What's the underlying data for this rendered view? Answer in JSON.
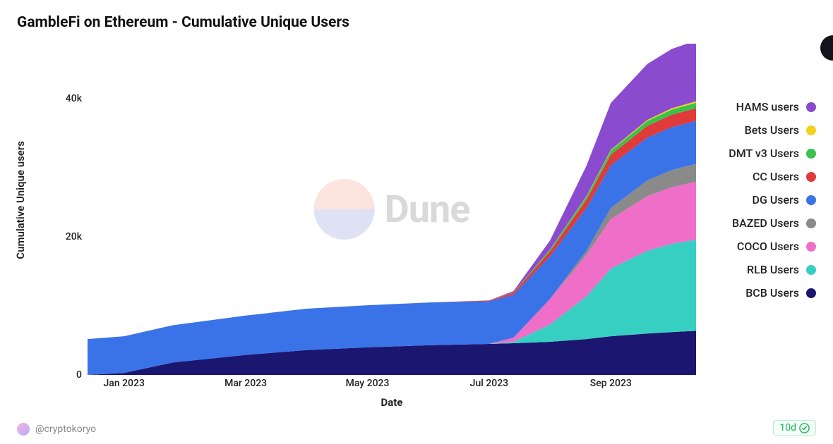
{
  "title": "GambleFi on Ethereum - Cumulative Unique Users",
  "y_axis_label": "Cumulative Unique users",
  "x_axis_label": "Date",
  "author_handle": "@cryptokoryo",
  "freshness": "10d",
  "watermark_text": "Dune",
  "chart": {
    "type": "stacked-area",
    "background_color": "#ffffff",
    "title_fontsize": 21,
    "label_fontsize": 15,
    "tick_fontsize": 14,
    "ylim": [
      0,
      48000
    ],
    "y_ticks": [
      {
        "value": 0,
        "label": "0"
      },
      {
        "value": 20000,
        "label": "20k"
      },
      {
        "value": 40000,
        "label": "40k"
      }
    ],
    "x_domain": [
      0,
      10
    ],
    "x_ticks": [
      {
        "pos": 0.6,
        "label": "Jan 2023"
      },
      {
        "pos": 2.6,
        "label": "Mar 2023"
      },
      {
        "pos": 4.6,
        "label": "May 2023"
      },
      {
        "pos": 6.6,
        "label": "Jul 2023"
      },
      {
        "pos": 8.6,
        "label": "Sep 2023"
      }
    ],
    "x_samples": [
      0,
      0.6,
      1.4,
      2.6,
      3.6,
      4.6,
      5.6,
      6.6,
      7.0,
      7.6,
      8.2,
      8.6,
      9.2,
      9.6,
      10
    ],
    "series": [
      {
        "key": "BCB",
        "label": "BCB Users",
        "color": "#1b1670",
        "values": [
          0,
          300,
          1800,
          2900,
          3600,
          4000,
          4300,
          4500,
          4600,
          4800,
          5200,
          5600,
          6000,
          6200,
          6400
        ]
      },
      {
        "key": "RLB",
        "label": "RLB Users",
        "color": "#38cfc3",
        "values": [
          0,
          0,
          0,
          0,
          0,
          0,
          0,
          0,
          200,
          2500,
          6200,
          9800,
          12000,
          12800,
          13200
        ]
      },
      {
        "key": "COCO",
        "label": "COCO Users",
        "color": "#ef6fc8",
        "values": [
          0,
          0,
          0,
          0,
          0,
          0,
          0,
          0,
          600,
          3700,
          6000,
          7200,
          7900,
          8200,
          8400
        ]
      },
      {
        "key": "BAZED",
        "label": "BAZED Users",
        "color": "#8a8a8a",
        "values": [
          0,
          0,
          0,
          0,
          0,
          0,
          0,
          0,
          0,
          0,
          600,
          1600,
          2300,
          2500,
          2600
        ]
      },
      {
        "key": "DG",
        "label": "DG Users",
        "color": "#3a73e8",
        "values": [
          5200,
          5300,
          5400,
          5700,
          6000,
          6100,
          6200,
          6200,
          6200,
          6200,
          6200,
          6200,
          6200,
          6200,
          6200
        ]
      },
      {
        "key": "CC",
        "label": "CC Users",
        "color": "#e03a3a",
        "values": [
          0,
          0,
          0,
          0,
          0,
          0,
          0,
          100,
          300,
          700,
          1200,
          1500,
          1700,
          1800,
          1850
        ]
      },
      {
        "key": "DMTv3",
        "label": "DMT v3 Users",
        "color": "#3bc24a",
        "values": [
          0,
          0,
          0,
          0,
          0,
          0,
          0,
          0,
          50,
          250,
          450,
          600,
          700,
          750,
          780
        ]
      },
      {
        "key": "Bets",
        "label": "Bets Users",
        "color": "#f2d21a",
        "values": [
          0,
          0,
          0,
          0,
          0,
          0,
          0,
          0,
          0,
          30,
          80,
          120,
          160,
          190,
          220
        ]
      },
      {
        "key": "HAMS",
        "label": "HAMS users",
        "color": "#8a4bcf",
        "values": [
          0,
          0,
          0,
          0,
          0,
          0,
          0,
          0,
          200,
          1300,
          4400,
          6800,
          8100,
          8600,
          8800
        ]
      }
    ],
    "legend_order": [
      "HAMS",
      "Bets",
      "DMTv3",
      "CC",
      "DG",
      "BAZED",
      "COCO",
      "RLB",
      "BCB"
    ],
    "legend_position": "right",
    "legend_dot_size": 14
  }
}
